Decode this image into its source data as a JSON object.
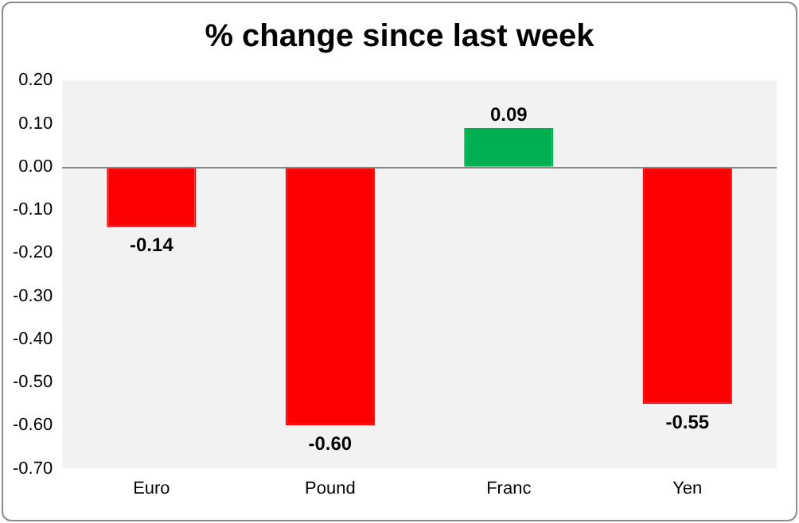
{
  "chart_data": {
    "type": "bar",
    "title": "% change since last week",
    "categories": [
      "Euro",
      "Pound",
      "Franc",
      "Yen"
    ],
    "values": [
      -0.14,
      -0.6,
      0.09,
      -0.55
    ],
    "colors": [
      "#ff0000",
      "#ff0000",
      "#00b050",
      "#ff0000"
    ],
    "value_labels": [
      "-0.14",
      "-0.60",
      "0.09",
      "-0.55"
    ],
    "ylim": [
      -0.7,
      0.2
    ],
    "yticks": [
      {
        "value": 0.2,
        "label": "0.20"
      },
      {
        "value": 0.1,
        "label": "0.10"
      },
      {
        "value": 0,
        "label": "0.00"
      },
      {
        "value": -0.1,
        "label": "-0.10"
      },
      {
        "value": -0.2,
        "label": "-0.20"
      },
      {
        "value": -0.3,
        "label": "-0.30"
      },
      {
        "value": -0.4,
        "label": "-0.40"
      },
      {
        "value": -0.5,
        "label": "-0.50"
      },
      {
        "value": -0.6,
        "label": "-0.60"
      },
      {
        "value": -0.7,
        "label": "-0.70"
      }
    ],
    "ref_lines": [
      {
        "axis": "y",
        "value": 0,
        "color": "#868686"
      }
    ],
    "grid": false,
    "legend": false
  }
}
